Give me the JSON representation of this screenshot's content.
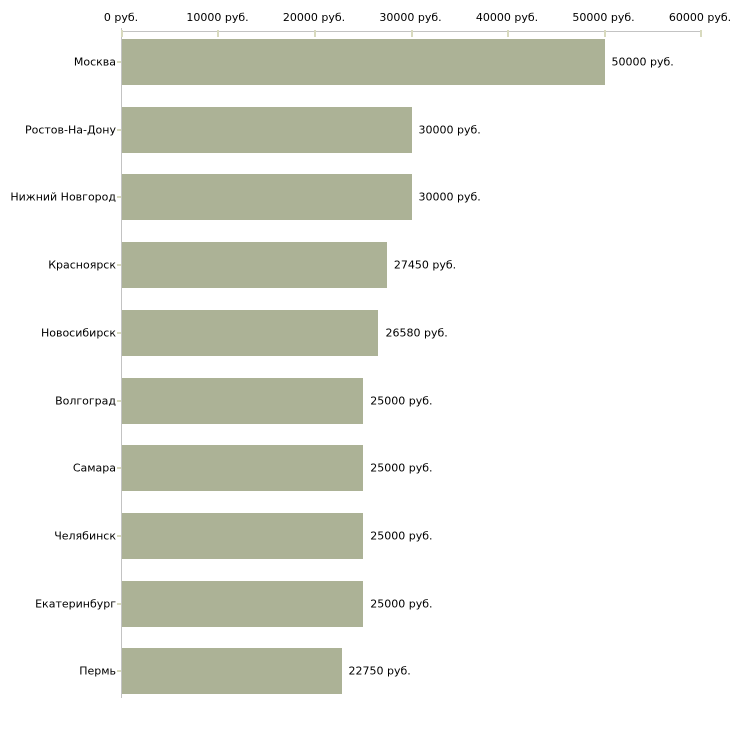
{
  "chart_data": {
    "type": "bar",
    "orientation": "horizontal",
    "title": "",
    "xlabel": "",
    "ylabel": "",
    "unit": "руб.",
    "xlim": [
      0,
      60000
    ],
    "grid": false,
    "legend": false,
    "x_tick_values": [
      0,
      10000,
      20000,
      30000,
      40000,
      50000,
      60000
    ],
    "x_tick_labels": [
      "0 руб.",
      "10000 руб.",
      "20000 руб.",
      "30000 руб.",
      "40000 руб.",
      "50000 руб.",
      "60000 руб."
    ],
    "categories": [
      "Москва",
      "Ростов-На-Дону",
      "Нижний Новгород",
      "Красноярск",
      "Новосибирск",
      "Волгоград",
      "Самара",
      "Челябинск",
      "Екатеринбург",
      "Пермь"
    ],
    "values": [
      50000,
      30000,
      30000,
      27450,
      26580,
      25000,
      25000,
      25000,
      25000,
      22750
    ],
    "value_labels": [
      "50000 руб.",
      "30000 руб.",
      "30000 руб.",
      "27450 руб.",
      "26580 руб.",
      "25000 руб.",
      "25000 руб.",
      "25000 руб.",
      "25000 руб.",
      "22750 руб."
    ],
    "colors": {
      "bar": "#ACB296",
      "axis_line": "#C3C3C3",
      "tick": "#D8DABE",
      "text": "#000000",
      "background": "#FFFFFF"
    }
  }
}
